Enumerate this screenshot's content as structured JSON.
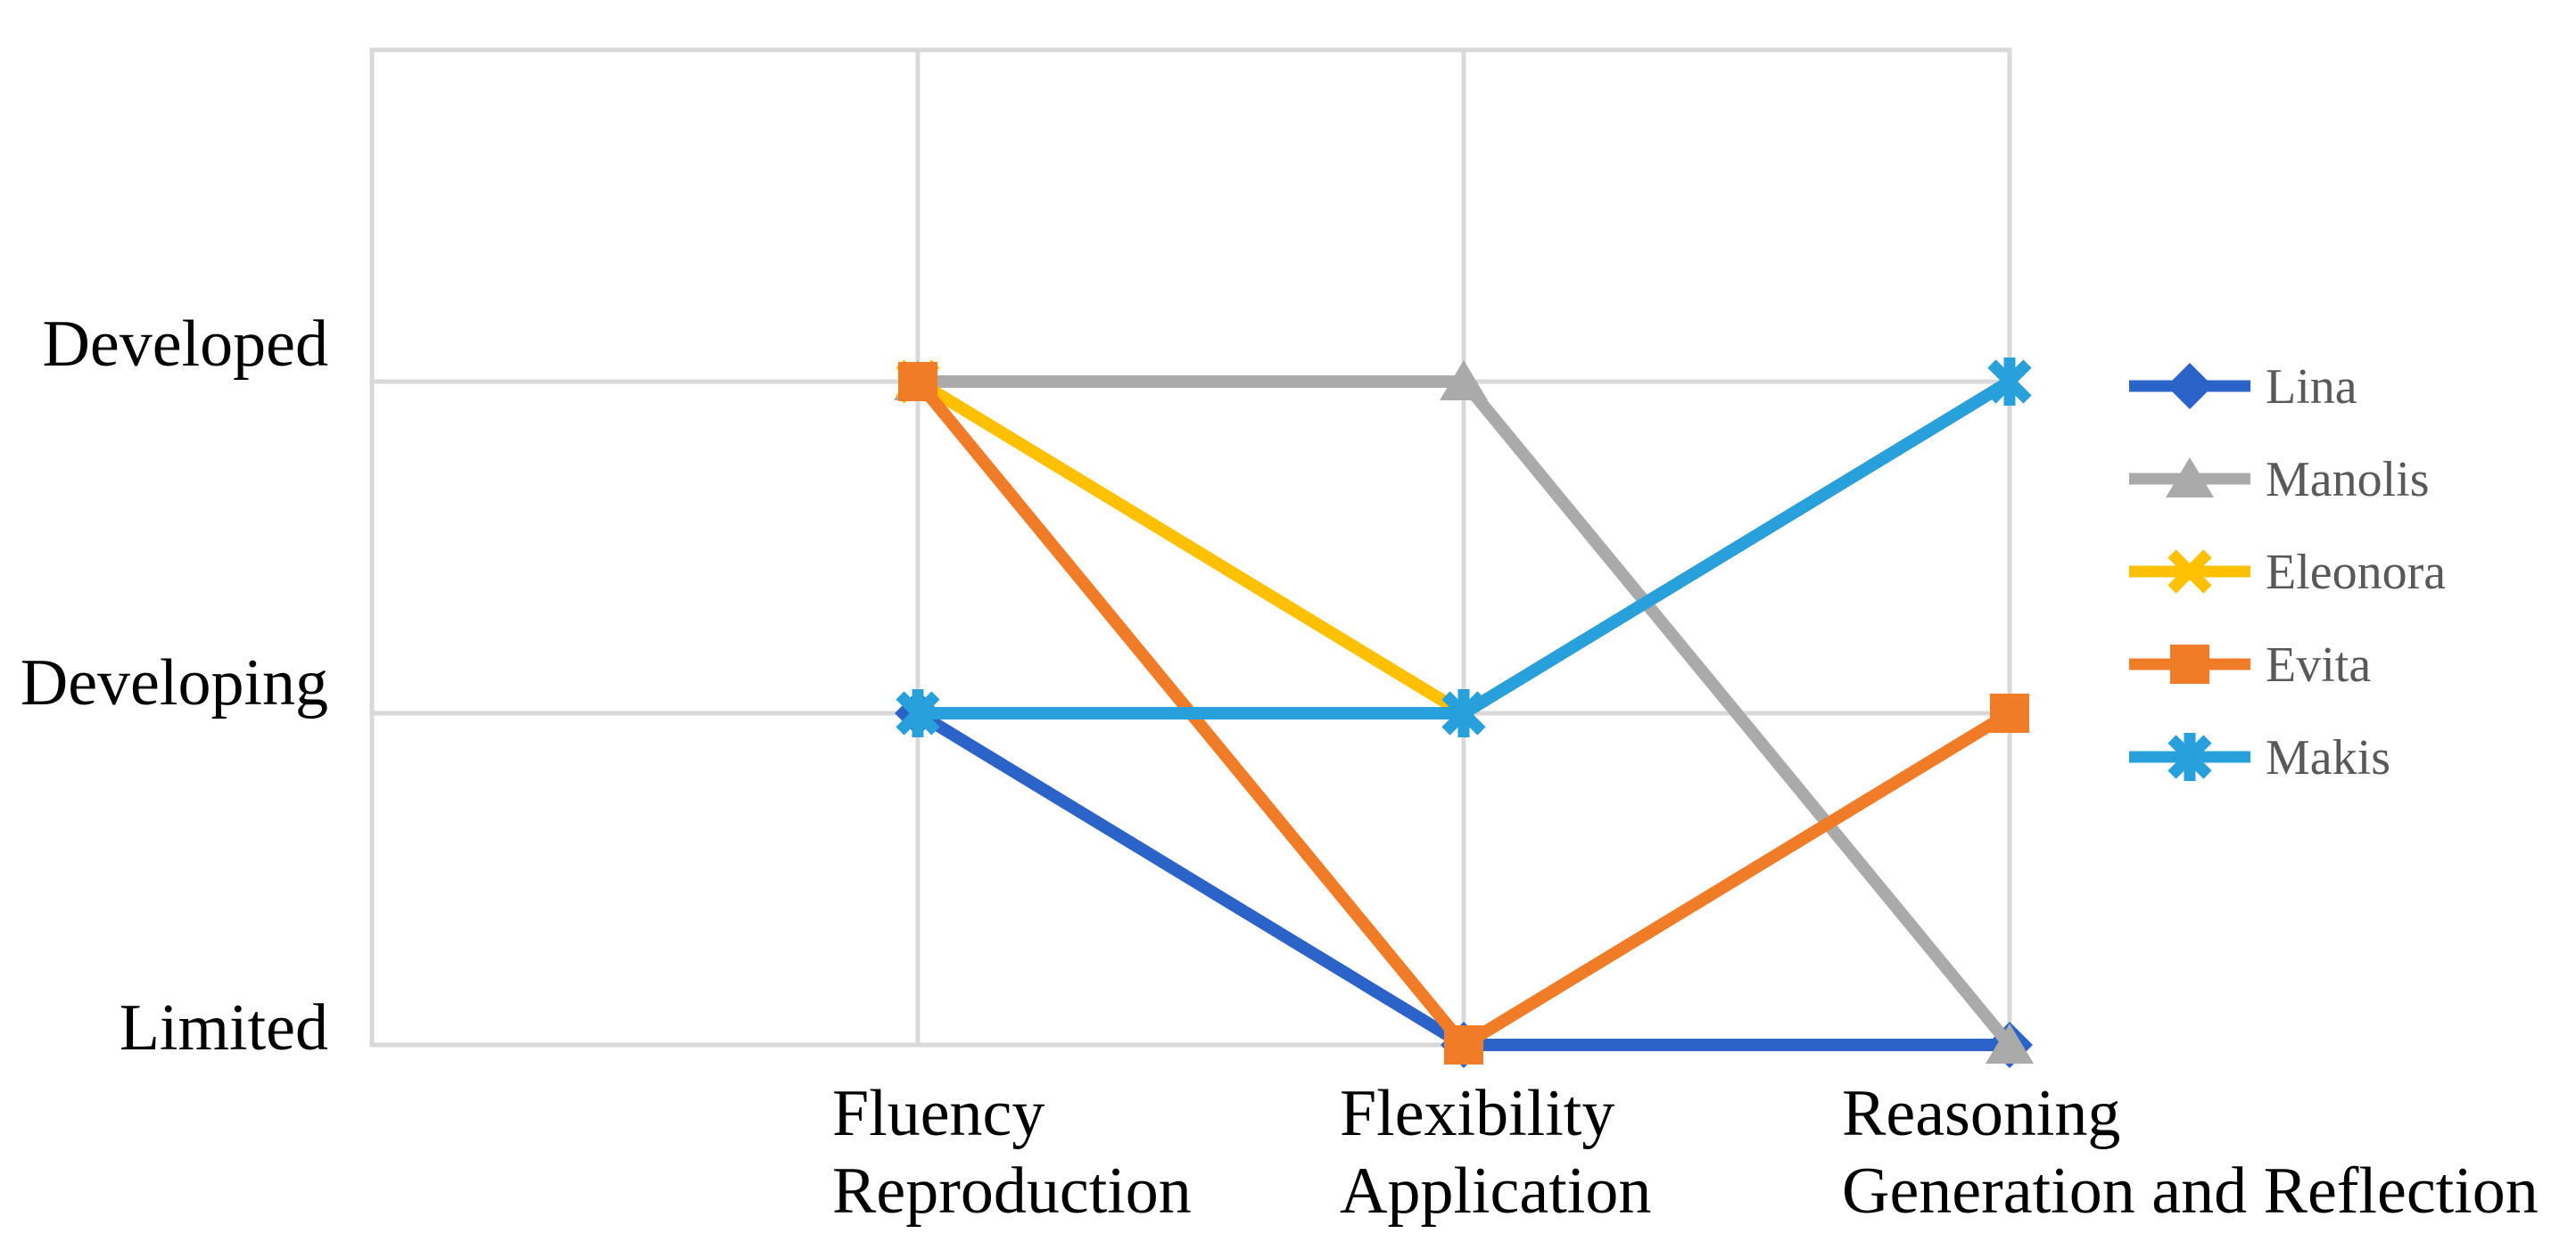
{
  "figure": {
    "background_color": "#ffffff",
    "plot_border_color": "#d9d9d9",
    "gridline_color": "#d9d9d9",
    "axis_text_color": "#000000",
    "legend_text_color": "#595959"
  },
  "chart_data": {
    "type": "line",
    "title": "",
    "xlabel": "",
    "ylabel": "",
    "grid": true,
    "categories": [
      {
        "line1": "Fluency",
        "line2": "Reproduction"
      },
      {
        "line1": "Flexibility",
        "line2": "Application"
      },
      {
        "line1": "Reasoning",
        "line2": "Generation and Reflection"
      }
    ],
    "y_axis": {
      "tick_labels": [
        "Developed",
        "Developing",
        "Limited"
      ],
      "level_scale": {
        "Limited": 1,
        "Developing": 2,
        "Developed": 3
      },
      "range": [
        1,
        4
      ]
    },
    "series": [
      {
        "name": "Lina",
        "color": "#2b63c9",
        "marker": "diamond",
        "values": [
          "Developing",
          "Limited",
          "Limited"
        ],
        "values_numeric": [
          2,
          1,
          1
        ]
      },
      {
        "name": "Manolis",
        "color": "#aaaaaa",
        "marker": "triangle",
        "values": [
          "Developed",
          "Developed",
          "Limited"
        ],
        "values_numeric": [
          3,
          3,
          1
        ]
      },
      {
        "name": "Eleonora",
        "color": "#ffc000",
        "marker": "x",
        "values": [
          "Developed",
          "Developing",
          "Developed"
        ],
        "values_numeric": [
          3,
          2,
          3
        ]
      },
      {
        "name": "Evita",
        "color": "#f07c28",
        "marker": "square",
        "values": [
          "Developed",
          "Limited",
          "Developing"
        ],
        "values_numeric": [
          3,
          1,
          2
        ]
      },
      {
        "name": "Makis",
        "color": "#28a0db",
        "marker": "asterisk",
        "values": [
          "Developing",
          "Developing",
          "Developed"
        ],
        "values_numeric": [
          2,
          2,
          3
        ]
      }
    ],
    "legend": {
      "position": "right",
      "entries": [
        "Lina",
        "Manolis",
        "Eleonora",
        "Evita",
        "Makis"
      ]
    }
  }
}
